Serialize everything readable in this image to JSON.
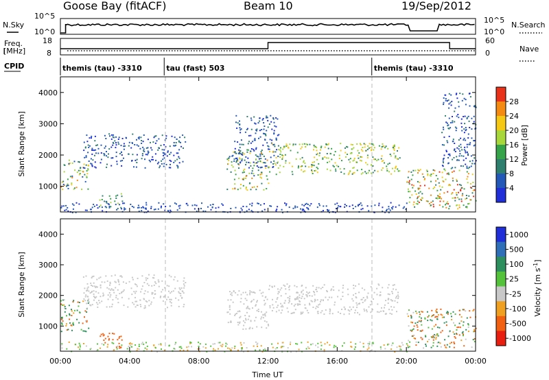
{
  "header": {
    "station": "Goose Bay (fitACF)",
    "beam": "Beam 10",
    "date": "19/Sep/2012"
  },
  "top_panels": {
    "nsky_label": "N.Sky",
    "nsky_ticks": [
      "10^5",
      "10^0"
    ],
    "nsearch_label": "N.Search",
    "nsearch_ticks": [
      "10^5",
      "10^0"
    ],
    "freq_label_line1": "Freq.",
    "freq_label_line2": "[MHz]",
    "freq_ticks": [
      "18",
      "8"
    ],
    "nave_label": "Nave",
    "nave_ticks": [
      "60",
      "0"
    ],
    "cpid_label": "CPID",
    "cpid_segments": [
      {
        "label": "themis (tau) -3310",
        "start_hour": 0,
        "end_hour": 6
      },
      {
        "label": "tau (fast) 503",
        "start_hour": 6,
        "end_hour": 18
      },
      {
        "label": "themis (tau) -3310",
        "start_hour": 18,
        "end_hour": 24
      }
    ],
    "freq_step_hours": [
      12,
      22.5
    ],
    "nave_levels": {
      "low": 10,
      "high": 40
    }
  },
  "chart_data": [
    {
      "type": "heatmap",
      "name": "power",
      "ylabel": "Slant Range [km]",
      "xlim": [
        0,
        24
      ],
      "ylim": [
        180,
        4500
      ],
      "yticks": [
        "1000",
        "2000",
        "3000",
        "4000"
      ],
      "colorbar_label": "Power [dB]",
      "colorbar_ticks": [
        "4",
        "8",
        "12",
        "16",
        "20",
        "24",
        "28"
      ],
      "colorbar_colors": [
        "#1f2ed6",
        "#2358b8",
        "#2e7f6e",
        "#36a24a",
        "#a8d73b",
        "#f5c816",
        "#f58a12",
        "#e8321a"
      ],
      "regions": [
        {
          "t0": 0.0,
          "t1": 1.6,
          "r0": 900,
          "r1": 1900,
          "power": [
            4,
            26
          ]
        },
        {
          "t0": 2.2,
          "t1": 3.6,
          "r0": 300,
          "r1": 800,
          "power": [
            6,
            20
          ]
        },
        {
          "t0": 1.3,
          "t1": 7.2,
          "r0": 1600,
          "r1": 2700,
          "power": [
            2,
            10
          ]
        },
        {
          "t0": 9.6,
          "t1": 12.0,
          "r0": 900,
          "r1": 2200,
          "power": [
            6,
            26
          ]
        },
        {
          "t0": 10.0,
          "t1": 12.6,
          "r0": 1600,
          "r1": 3300,
          "power": [
            2,
            10
          ]
        },
        {
          "t0": 12.0,
          "t1": 19.6,
          "r0": 1400,
          "r1": 2400,
          "power": [
            10,
            24
          ]
        },
        {
          "t0": 20.0,
          "t1": 24.0,
          "r0": 300,
          "r1": 1600,
          "power": [
            8,
            30
          ]
        },
        {
          "t0": 22.0,
          "t1": 24.0,
          "r0": 1600,
          "r1": 4000,
          "power": [
            2,
            10
          ]
        },
        {
          "t0": 0.0,
          "t1": 20.0,
          "r0": 180,
          "r1": 500,
          "power": [
            2,
            8
          ]
        }
      ]
    },
    {
      "type": "heatmap",
      "name": "velocity",
      "ylabel": "Slant Range [km]",
      "xlabel": "Time UT",
      "xlim": [
        0,
        24
      ],
      "ylim": [
        180,
        4500
      ],
      "yticks": [
        "1000",
        "2000",
        "3000",
        "4000"
      ],
      "xticks": [
        "00:00",
        "04:00",
        "08:00",
        "12:00",
        "16:00",
        "20:00",
        "00:00"
      ],
      "colorbar_label": "Velocity [m s",
      "colorbar_label_sup": "-1",
      "colorbar_label_end": "]",
      "colorbar_ticks": [
        "1000",
        "500",
        "100",
        "25",
        "-25",
        "-100",
        "-500",
        "-1000"
      ],
      "colorbar_colors": [
        "#1f2ed6",
        "#2e6fb8",
        "#2e8f5e",
        "#55c23c",
        "#c8c8c8",
        "#f0a020",
        "#f06010",
        "#e81e10"
      ],
      "regions": [
        {
          "t0": 0.0,
          "t1": 1.6,
          "r0": 800,
          "r1": 1900,
          "velocity": [
            -300,
            400
          ]
        },
        {
          "t0": 2.2,
          "t1": 3.6,
          "r0": 300,
          "r1": 800,
          "velocity": [
            -400,
            -100
          ]
        },
        {
          "t0": 1.3,
          "t1": 7.2,
          "r0": 1600,
          "r1": 2700,
          "velocity": [
            -20,
            20
          ]
        },
        {
          "t0": 9.6,
          "t1": 12.0,
          "r0": 900,
          "r1": 2200,
          "velocity": [
            -20,
            20
          ]
        },
        {
          "t0": 12.0,
          "t1": 19.6,
          "r0": 1400,
          "r1": 2400,
          "velocity": [
            -20,
            20
          ]
        },
        {
          "t0": 20.0,
          "t1": 24.0,
          "r0": 300,
          "r1": 1600,
          "velocity": [
            -300,
            300
          ]
        },
        {
          "t0": 0.0,
          "t1": 20.0,
          "r0": 180,
          "r1": 500,
          "velocity": [
            -100,
            100
          ]
        }
      ]
    }
  ]
}
